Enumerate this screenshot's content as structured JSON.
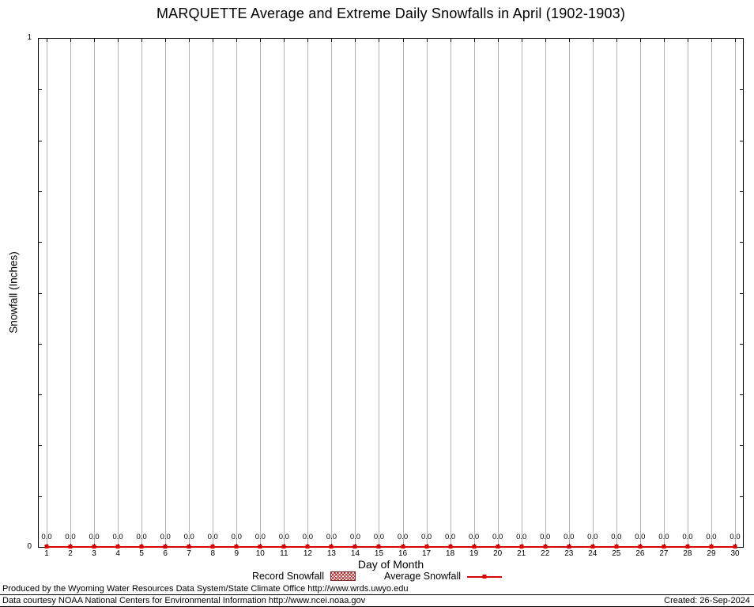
{
  "chart_data": {
    "type": "bar",
    "title": "MARQUETTE Average and Extreme Daily Snowfalls in April (1902-1903)",
    "xlabel": "Day of Month",
    "ylabel": "Snowfall (Inches)",
    "ylim": [
      0,
      1
    ],
    "yticks": [
      0,
      1
    ],
    "grid": "vertical",
    "legend_position": "bottom",
    "categories": [
      1,
      2,
      3,
      4,
      5,
      6,
      7,
      8,
      9,
      10,
      11,
      12,
      13,
      14,
      15,
      16,
      17,
      18,
      19,
      20,
      21,
      22,
      23,
      24,
      25,
      26,
      27,
      28,
      29,
      30
    ],
    "series": [
      {
        "name": "Record Snowfall",
        "style": "hatched-bar",
        "color": "#b23030",
        "values": [
          0.0,
          0.0,
          0.0,
          0.0,
          0.0,
          0.0,
          0.0,
          0.0,
          0.0,
          0.0,
          0.0,
          0.0,
          0.0,
          0.0,
          0.0,
          0.0,
          0.0,
          0.0,
          0.0,
          0.0,
          0.0,
          0.0,
          0.0,
          0.0,
          0.0,
          0.0,
          0.0,
          0.0,
          0.0,
          0.0
        ]
      },
      {
        "name": "Average Snowfall",
        "style": "line-points",
        "color": "#d90000",
        "values": [
          0.0,
          0.0,
          0.0,
          0.0,
          0.0,
          0.0,
          0.0,
          0.0,
          0.0,
          0.0,
          0.0,
          0.0,
          0.0,
          0.0,
          0.0,
          0.0,
          0.0,
          0.0,
          0.0,
          0.0,
          0.0,
          0.0,
          0.0,
          0.0,
          0.0,
          0.0,
          0.0,
          0.0,
          0.0,
          0.0
        ]
      }
    ],
    "value_labels": [
      "0.0",
      "0.0",
      "0.0",
      "0.0",
      "0.0",
      "0.0",
      "0.0",
      "0.0",
      "0.0",
      "0.0",
      "0.0",
      "0.0",
      "0.0",
      "0.0",
      "0.0",
      "0.0",
      "0.0",
      "0.0",
      "0.0",
      "0.0",
      "0.0",
      "0.0",
      "0.0",
      "0.0",
      "0.0",
      "0.0",
      "0.0",
      "0.0",
      "0.0",
      "0.0"
    ]
  },
  "colors": {
    "grid": "#b3b3b3",
    "axis": "#000000",
    "average_line": "#d90000",
    "record_hatch": "#b23030"
  },
  "footer": {
    "line1": "Produced by the Wyoming Water Resources Data System/State Climate Office http://www.wrds.uwyo.edu",
    "line2": "Data courtesy NOAA National Centers for Environmental Information http://www.ncei.noaa.gov",
    "created": "Created: 26-Sep-2024"
  }
}
